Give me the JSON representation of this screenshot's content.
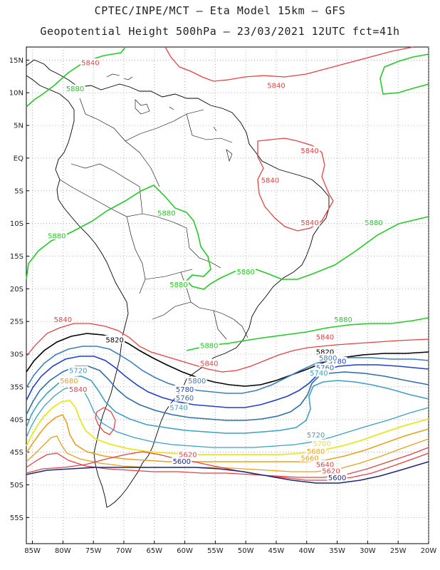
{
  "title": {
    "line1": "CPTEC/INPE/MCT —  Eta Model 15km — GFS",
    "line2": "Geopotential Height 500hPa — 23/03/2021 12UTC fct=41h"
  },
  "axes": {
    "lat_labels": [
      "15N",
      "10N",
      "5N",
      "EQ",
      "5S",
      "10S",
      "15S",
      "20S",
      "25S",
      "30S",
      "35S",
      "40S",
      "45S",
      "50S",
      "55S"
    ],
    "lon_labels": [
      "85W",
      "80W",
      "75W",
      "70W",
      "65W",
      "60W",
      "55W",
      "50W",
      "45W",
      "40W",
      "35W",
      "30W",
      "25W",
      "20W"
    ],
    "lat_range": [
      -59,
      17
    ],
    "lon_range": [
      -86,
      -20
    ],
    "grid": "dotted"
  },
  "colors": {
    "c5880": "#22cc22",
    "c5840": "#e84040",
    "c5820": "#000000",
    "c5800": "#3a7fc0",
    "c5780": "#1f3fd0",
    "c5760": "#2f6fa8",
    "c5740": "#3aa0c8",
    "c5720": "#3aa0c8",
    "c5700": "#e8e820",
    "c5680": "#e8a020",
    "c5660": "#e8a020",
    "c5640": "#e84040",
    "c5620": "#e84040",
    "c5600": "#1a2a7a"
  },
  "contour_labels": [
    {
      "text": "5840",
      "lon": -75.5,
      "lat": 14.5,
      "color": "c5840"
    },
    {
      "text": "5840",
      "lon": -45,
      "lat": 11,
      "color": "c5840"
    },
    {
      "text": "5880",
      "lon": -78,
      "lat": 10.5,
      "color": "c5880"
    },
    {
      "text": "5840",
      "lon": -39.5,
      "lat": 1,
      "color": "c5840"
    },
    {
      "text": "5840",
      "lon": -46,
      "lat": -3.5,
      "color": "c5840"
    },
    {
      "text": "5840",
      "lon": -39.5,
      "lat": -10,
      "color": "c5840"
    },
    {
      "text": "5880",
      "lon": -63,
      "lat": -8.5,
      "color": "c5880"
    },
    {
      "text": "5880",
      "lon": -29,
      "lat": -10,
      "color": "c5880"
    },
    {
      "text": "5880",
      "lon": -81,
      "lat": -12,
      "color": "c5880"
    },
    {
      "text": "5880",
      "lon": -50,
      "lat": -17.5,
      "color": "c5880"
    },
    {
      "text": "5880",
      "lon": -61,
      "lat": -19.5,
      "color": "c5880"
    },
    {
      "text": "5880",
      "lon": -34,
      "lat": -24.8,
      "color": "c5880"
    },
    {
      "text": "5840",
      "lon": -80,
      "lat": -24.8,
      "color": "c5840"
    },
    {
      "text": "5840",
      "lon": -37,
      "lat": -27.5,
      "color": "c5840"
    },
    {
      "text": "5820",
      "lon": -71.5,
      "lat": -27.9,
      "color": "c5820"
    },
    {
      "text": "5880",
      "lon": -56,
      "lat": -28.8,
      "color": "c5880"
    },
    {
      "text": "5820",
      "lon": -37,
      "lat": -29.8,
      "color": "c5820"
    },
    {
      "text": "5840",
      "lon": -56,
      "lat": -31.5,
      "color": "c5840"
    },
    {
      "text": "5780",
      "lon": -35,
      "lat": -31.2,
      "color": "c5780"
    },
    {
      "text": "5800",
      "lon": -36.5,
      "lat": -30.7,
      "color": "c5800"
    },
    {
      "text": "5760",
      "lon": -37,
      "lat": -32.2,
      "color": "c5760"
    },
    {
      "text": "5740",
      "lon": -38,
      "lat": -33,
      "color": "c5740"
    },
    {
      "text": "5720",
      "lon": -77.5,
      "lat": -32.6,
      "color": "c5720"
    },
    {
      "text": "5800",
      "lon": -58,
      "lat": -34.2,
      "color": "c5800"
    },
    {
      "text": "5680",
      "lon": -79,
      "lat": -34.2,
      "color": "c5680"
    },
    {
      "text": "5780",
      "lon": -60,
      "lat": -35.5,
      "color": "c5780"
    },
    {
      "text": "5840",
      "lon": -77.5,
      "lat": -35.5,
      "color": "c5840"
    },
    {
      "text": "5760",
      "lon": -60,
      "lat": -36.8,
      "color": "c5760"
    },
    {
      "text": "5740",
      "lon": -61,
      "lat": -38.3,
      "color": "c5740"
    },
    {
      "text": "5720",
      "lon": -38.5,
      "lat": -42.5,
      "color": "c5720"
    },
    {
      "text": "5700",
      "lon": -37.5,
      "lat": -43.8,
      "color": "c5700"
    },
    {
      "text": "5680",
      "lon": -38.5,
      "lat": -45,
      "color": "c5680"
    },
    {
      "text": "5620",
      "lon": -59.5,
      "lat": -45.5,
      "color": "c5620"
    },
    {
      "text": "5660",
      "lon": -39.5,
      "lat": -46,
      "color": "c5660"
    },
    {
      "text": "5600",
      "lon": -60.5,
      "lat": -46.5,
      "color": "c5600"
    },
    {
      "text": "5640",
      "lon": -37,
      "lat": -47,
      "color": "c5640"
    },
    {
      "text": "5620",
      "lon": -36,
      "lat": -48,
      "color": "c5620"
    },
    {
      "text": "5600",
      "lon": -35,
      "lat": -49,
      "color": "c5600"
    }
  ]
}
